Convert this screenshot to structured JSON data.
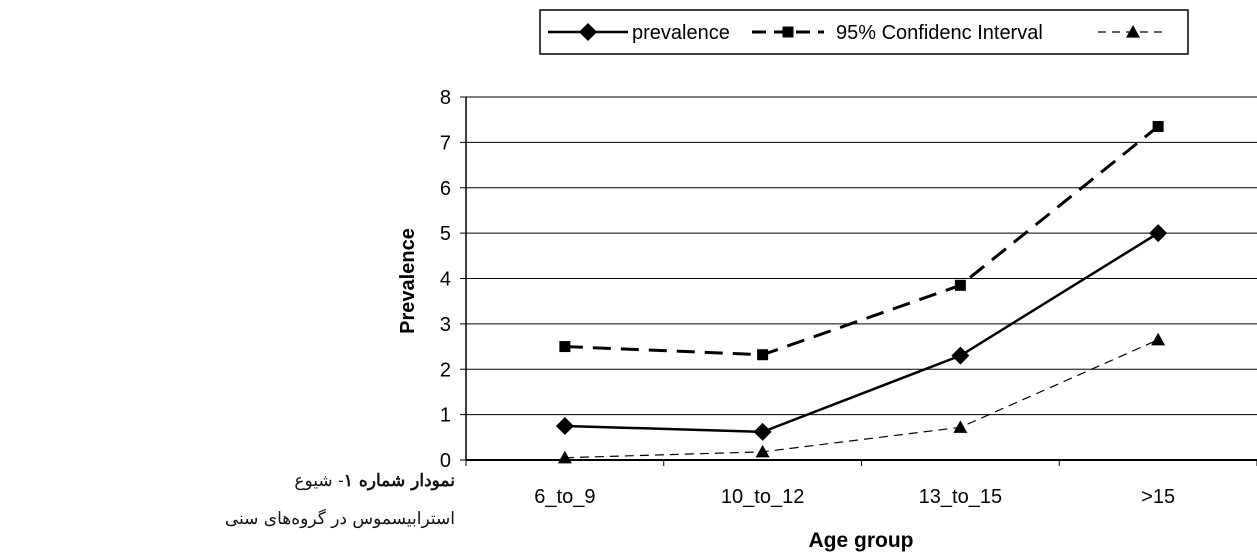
{
  "caption": {
    "bold": "نمودار شماره ۱",
    "text": "- شیوع استرابیسموس در گروه‌های سنی"
  },
  "chart_data": {
    "type": "line",
    "categories": [
      "6_to_9",
      "10_to_12",
      "13_to_15",
      ">15"
    ],
    "series": [
      {
        "name": "prevalence",
        "values": [
          0.75,
          0.62,
          2.3,
          5.0
        ],
        "marker": "diamond",
        "style": "solid",
        "color": "#000000"
      },
      {
        "name": "95% Confidenc Interval",
        "values": [
          2.5,
          2.32,
          3.85,
          7.35
        ],
        "marker": "square",
        "style": "dashed",
        "color": "#000000"
      },
      {
        "name": "",
        "values": [
          0.05,
          0.18,
          0.72,
          2.65
        ],
        "marker": "triangle",
        "style": "thin-dashed",
        "color": "#000000"
      }
    ],
    "xlabel": "Age group",
    "ylabel": "Prevalence",
    "ylim": [
      0,
      8
    ],
    "yticks": [
      "0",
      "1",
      "2",
      "3",
      "4",
      "5",
      "6",
      "7",
      "8"
    ],
    "grid": true,
    "legend_position": "top"
  }
}
